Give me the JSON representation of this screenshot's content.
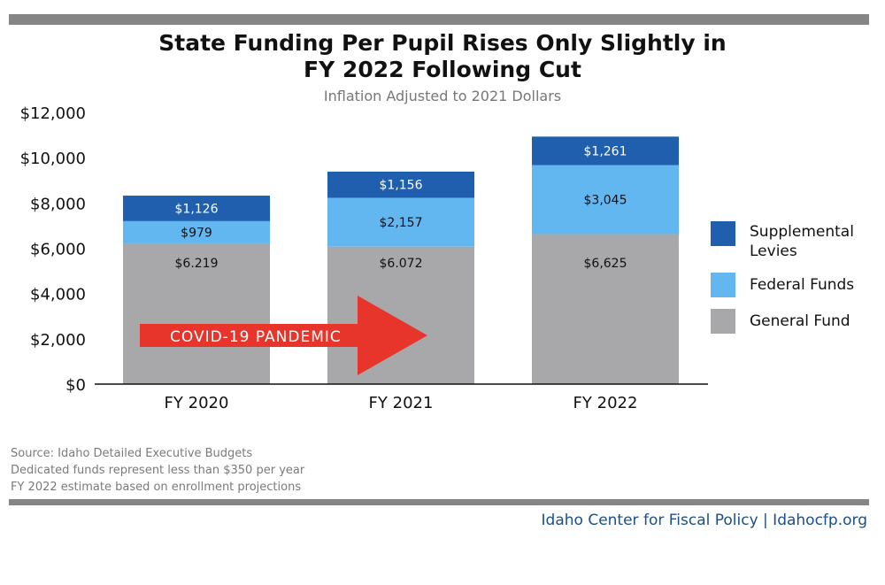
{
  "title_line1": "State Funding Per Pupil Rises Only Slightly in",
  "title_line2": "FY 2022 Following Cut",
  "subtitle": "Inflation Adjusted to 2021 Dollars",
  "notes": [
    "Source: Idaho Detailed Executive Budgets",
    "Dedicated funds represent less than $350 per year",
    "FY 2022 estimate based on enrollment projections"
  ],
  "credit": "Idaho Center for Fiscal Policy | Idahocfp.org",
  "annotation": "COVID-19 PANDEMIC",
  "legend": [
    {
      "label_line1": "Supplemental",
      "label_line2": "Levies",
      "color": "#1f5fad"
    },
    {
      "label_line1": "Federal Funds",
      "label_line2": "",
      "color": "#62b7f1"
    },
    {
      "label_line1": "General Fund",
      "label_line2": "",
      "color": "#a8a8aa"
    }
  ],
  "chart_data": {
    "type": "bar",
    "stacked": true,
    "categories": [
      "FY 2020",
      "FY 2021",
      "FY 2022"
    ],
    "series": [
      {
        "name": "General Fund",
        "values": [
          6219,
          6072,
          6625
        ],
        "labels": [
          "$6.219",
          "$6.072",
          "$6,625"
        ],
        "color": "#a8a8aa"
      },
      {
        "name": "Federal Funds",
        "values": [
          979,
          2157,
          3045
        ],
        "labels": [
          "$979",
          "$2,157",
          "$3,045"
        ],
        "color": "#62b7f1"
      },
      {
        "name": "Supplemental Levies",
        "values": [
          1126,
          1156,
          1261
        ],
        "labels": [
          "$1,126",
          "$1,156",
          "$1,261"
        ],
        "color": "#1f5fad"
      }
    ],
    "yticks": [
      "$0",
      "$2,000",
      "$4,000",
      "$6,000",
      "$8,000",
      "$10,000",
      "$12,000"
    ],
    "ylim": [
      0,
      12000
    ],
    "grid": false,
    "legend_position": "right",
    "annotation_color": "#e8352c"
  }
}
